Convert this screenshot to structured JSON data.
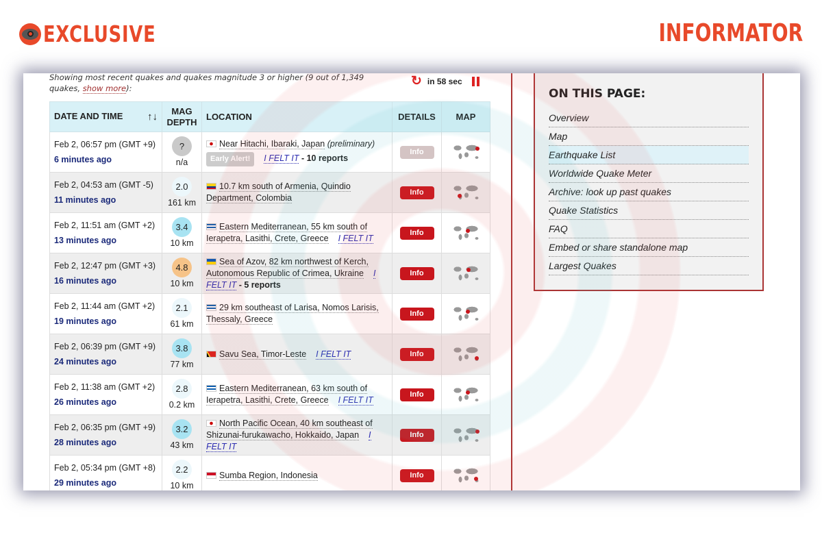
{
  "brand": {
    "left": "EXCLUSIVE",
    "right": "INFORMATOR"
  },
  "summary": {
    "text": "Showing most recent quakes and quakes magnitude 3 or higher (9 out of 1,349 quakes, ",
    "link": "show more",
    "tail": "):"
  },
  "refresh": {
    "label": "in 58 sec"
  },
  "table": {
    "headers": {
      "date": "DATE AND TIME",
      "mag": "MAG",
      "depth": "DEPTH",
      "location": "LOCATION",
      "details": "DETAILS",
      "map": "MAP"
    },
    "rows": [
      {
        "date": "Feb 2, 06:57 pm (GMT +9)",
        "ago": "6 minutes ago",
        "mag": "?",
        "depth": "n/a",
        "magcolor": "q",
        "flag": "japan",
        "loc": "Near Hitachi, Ibaraki, Japan",
        "note": "(preliminary)",
        "early": "Early Alert!",
        "felt": "I FELT IT",
        "reports": " - 10 reports",
        "info": "Info",
        "disabled": true
      },
      {
        "date": "Feb 2, 04:53 am (GMT -5)",
        "ago": "11 minutes ago",
        "mag": "2.0",
        "depth": "161 km",
        "magcolor": "l",
        "flag": "colombia",
        "loc": "10.7 km south of Armenia, Quindio Department, Colombia",
        "info": "Info"
      },
      {
        "date": "Feb 2, 11:51 am (GMT +2)",
        "ago": "13 minutes ago",
        "mag": "3.4",
        "depth": "10 km",
        "magcolor": "b",
        "flag": "greece",
        "loc": "Eastern Mediterranean, 55 km south of Ierapetra, Lasithi, Crete, Greece",
        "felt": "I FELT IT",
        "info": "Info"
      },
      {
        "date": "Feb 2, 12:47 pm (GMT +3)",
        "ago": "16 minutes ago",
        "mag": "4.8",
        "depth": "10 km",
        "magcolor": "o",
        "flag": "ukraine",
        "loc": "Sea of Azov, 82 km northwest of Kerch, Autonomous Republic of Crimea, Ukraine",
        "felt": "I FELT IT",
        "reports": " - 5 reports",
        "info": "Info"
      },
      {
        "date": "Feb 2, 11:44 am (GMT +2)",
        "ago": "19 minutes ago",
        "mag": "2.1",
        "depth": "61 km",
        "magcolor": "l",
        "flag": "greece",
        "loc": "29 km southeast of Larisa, Nomos Larisis, Thessaly, Greece",
        "info": "Info"
      },
      {
        "date": "Feb 2, 06:39 pm (GMT +9)",
        "ago": "24 minutes ago",
        "mag": "3.8",
        "depth": "77 km",
        "magcolor": "b",
        "flag": "timor-leste",
        "loc": "Savu Sea, Timor-Leste",
        "felt": "I FELT IT",
        "info": "Info"
      },
      {
        "date": "Feb 2, 11:38 am (GMT +2)",
        "ago": "26 minutes ago",
        "mag": "2.8",
        "depth": "0.2 km",
        "magcolor": "l",
        "flag": "greece",
        "loc": "Eastern Mediterranean, 63 km south of Ierapetra, Lasithi, Crete, Greece",
        "felt": "I FELT IT",
        "info": "Info"
      },
      {
        "date": "Feb 2, 06:35 pm (GMT +9)",
        "ago": "28 minutes ago",
        "mag": "3.2",
        "depth": "43 km",
        "magcolor": "b",
        "flag": "japan",
        "loc": "North Pacific Ocean, 40 km southeast of Shizunai-furukawacho, Hokkaido, Japan",
        "felt": "I FELT IT",
        "info": "Info"
      },
      {
        "date": "Feb 2, 05:34 pm (GMT +8)",
        "ago": "29 minutes ago",
        "mag": "2.2",
        "depth": "10 km",
        "magcolor": "l",
        "flag": "indonesia",
        "loc": "Sumba Region, Indonesia",
        "info": "Info"
      }
    ]
  },
  "sidebar": {
    "title": "ON THIS PAGE:",
    "items": [
      "Overview",
      "Map",
      "Earthquake List",
      "Worldwide Quake Meter",
      "Archive: look up past quakes",
      "Quake Statistics",
      "FAQ",
      "Embed or share standalone map",
      "Largest Quakes"
    ],
    "active": 2
  },
  "colors": {
    "brand": "#e8492a",
    "info_button": "#c8161d",
    "header_bg": "#d8f1f7",
    "accent_line": "#aa3333"
  }
}
